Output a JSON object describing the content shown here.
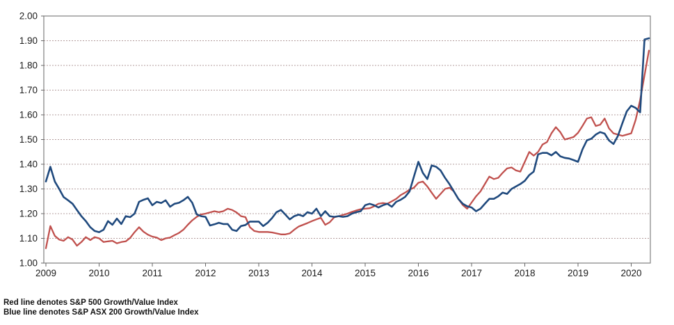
{
  "chart_data": {
    "type": "line",
    "title": "",
    "x_axis": {
      "tick_labels": [
        "2009",
        "2010",
        "2011",
        "2012",
        "2013",
        "2014",
        "2015",
        "2016",
        "2017",
        "2018",
        "2019",
        "2020"
      ],
      "unit": "year",
      "points_per_year": 12,
      "start": "2009-01",
      "end": "2020-05"
    },
    "y_axis": {
      "tick_labels": [
        "1.00",
        "1.10",
        "1.20",
        "1.30",
        "1.40",
        "1.50",
        "1.60",
        "1.70",
        "1.80",
        "1.90",
        "2.00"
      ],
      "min": 1.0,
      "max": 2.0,
      "step": 0.1
    },
    "grid": {
      "horizontal_dashed": true
    },
    "legend_position": "below-left",
    "series": [
      {
        "name": "S&P 500 Growth/Value Index",
        "color": "#C0504D",
        "values": [
          1.06,
          1.15,
          1.11,
          1.095,
          1.09,
          1.105,
          1.095,
          1.07,
          1.085,
          1.105,
          1.093,
          1.105,
          1.1,
          1.085,
          1.088,
          1.09,
          1.08,
          1.085,
          1.088,
          1.102,
          1.125,
          1.145,
          1.127,
          1.115,
          1.107,
          1.103,
          1.093,
          1.1,
          1.103,
          1.113,
          1.122,
          1.135,
          1.155,
          1.173,
          1.187,
          1.197,
          1.2,
          1.205,
          1.21,
          1.206,
          1.21,
          1.22,
          1.215,
          1.205,
          1.19,
          1.186,
          1.145,
          1.13,
          1.126,
          1.126,
          1.126,
          1.124,
          1.12,
          1.116,
          1.116,
          1.12,
          1.135,
          1.148,
          1.155,
          1.162,
          1.17,
          1.177,
          1.183,
          1.155,
          1.165,
          1.185,
          1.19,
          1.195,
          1.2,
          1.207,
          1.213,
          1.218,
          1.22,
          1.222,
          1.23,
          1.24,
          1.243,
          1.24,
          1.25,
          1.26,
          1.275,
          1.285,
          1.297,
          1.305,
          1.325,
          1.33,
          1.31,
          1.285,
          1.26,
          1.28,
          1.3,
          1.305,
          1.29,
          1.26,
          1.235,
          1.22,
          1.245,
          1.27,
          1.29,
          1.32,
          1.35,
          1.34,
          1.345,
          1.365,
          1.383,
          1.387,
          1.375,
          1.37,
          1.41,
          1.45,
          1.435,
          1.45,
          1.48,
          1.49,
          1.525,
          1.55,
          1.53,
          1.5,
          1.505,
          1.51,
          1.527,
          1.555,
          1.585,
          1.59,
          1.555,
          1.56,
          1.585,
          1.545,
          1.525,
          1.52,
          1.515,
          1.52,
          1.525,
          1.58,
          1.66,
          1.76,
          1.86
        ]
      },
      {
        "name": "S&P ASX 200 Growth/Value Index",
        "color": "#1F497D",
        "values": [
          1.33,
          1.39,
          1.33,
          1.3,
          1.267,
          1.254,
          1.24,
          1.215,
          1.19,
          1.17,
          1.145,
          1.13,
          1.125,
          1.135,
          1.17,
          1.155,
          1.18,
          1.158,
          1.19,
          1.186,
          1.2,
          1.248,
          1.256,
          1.262,
          1.234,
          1.248,
          1.243,
          1.254,
          1.228,
          1.24,
          1.244,
          1.254,
          1.268,
          1.244,
          1.197,
          1.19,
          1.187,
          1.152,
          1.157,
          1.163,
          1.158,
          1.158,
          1.135,
          1.13,
          1.15,
          1.154,
          1.168,
          1.168,
          1.168,
          1.15,
          1.163,
          1.182,
          1.206,
          1.215,
          1.196,
          1.177,
          1.19,
          1.196,
          1.19,
          1.206,
          1.2,
          1.22,
          1.19,
          1.21,
          1.19,
          1.187,
          1.19,
          1.187,
          1.19,
          1.2,
          1.206,
          1.21,
          1.234,
          1.24,
          1.234,
          1.225,
          1.234,
          1.24,
          1.228,
          1.248,
          1.256,
          1.268,
          1.29,
          1.35,
          1.41,
          1.365,
          1.34,
          1.395,
          1.39,
          1.375,
          1.345,
          1.32,
          1.29,
          1.26,
          1.24,
          1.23,
          1.225,
          1.21,
          1.22,
          1.24,
          1.26,
          1.26,
          1.27,
          1.285,
          1.28,
          1.3,
          1.31,
          1.32,
          1.333,
          1.356,
          1.37,
          1.44,
          1.446,
          1.446,
          1.436,
          1.45,
          1.432,
          1.426,
          1.423,
          1.417,
          1.41,
          1.46,
          1.497,
          1.503,
          1.52,
          1.53,
          1.524,
          1.496,
          1.482,
          1.515,
          1.566,
          1.614,
          1.637,
          1.628,
          1.61,
          1.905,
          1.91
        ]
      }
    ]
  },
  "footnotes": {
    "line1": "Red line denotes S&P 500 Growth/Value Index",
    "line2": "Blue line denotes S&P ASX 200 Growth/Value Index"
  },
  "colors": {
    "red_line": "#C0504D",
    "blue_line": "#1F497D",
    "plot_border": "#7f7f7f",
    "axis_line": "#666666",
    "gridline": "#b39c9c",
    "tick_text": "#1a1a1a",
    "background": "#ffffff"
  }
}
